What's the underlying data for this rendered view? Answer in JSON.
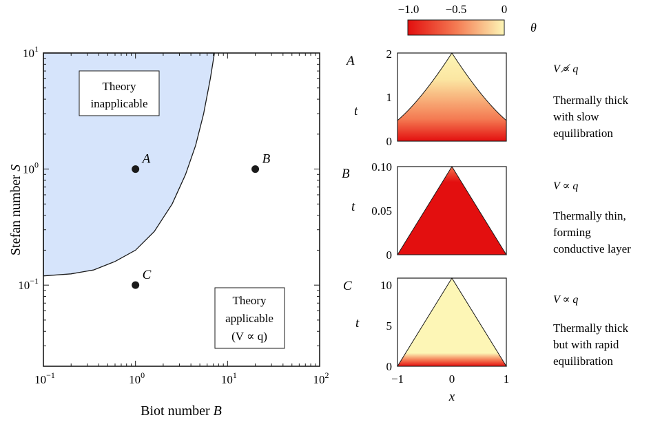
{
  "colors": {
    "region_fill": "#d6e4fb",
    "axis": "#1a1a1a",
    "point": "#1a1a1a",
    "cmap_low": "#e30f0f",
    "cmap_mid": "#f47a52",
    "cmap_high": "#fdf6b6"
  },
  "colorbar": {
    "ticks": [
      "−1.0",
      "−0.5",
      "0"
    ],
    "tick_values": [
      -1.0,
      -0.5,
      0
    ],
    "label": "θ"
  },
  "main": {
    "ylabel_prefix": "Stefan number ",
    "ylabel_sym": "S",
    "xlabel_prefix": "Biot number ",
    "xlabel_sym": "B",
    "x_ticks": [
      {
        "base": "10",
        "exp": "−1",
        "value": 0.1
      },
      {
        "base": "10",
        "exp": "0",
        "value": 1
      },
      {
        "base": "10",
        "exp": "1",
        "value": 10
      },
      {
        "base": "10",
        "exp": "2",
        "value": 100
      }
    ],
    "y_ticks": [
      {
        "base": "10",
        "exp": "−1",
        "value": 0.1
      },
      {
        "base": "10",
        "exp": "0",
        "value": 1
      },
      {
        "base": "10",
        "exp": "1",
        "value": 10
      }
    ],
    "box_inapplicable": [
      "Theory",
      "inapplicable"
    ],
    "box_applicable": [
      "Theory",
      "applicable",
      "(V ∝ q)"
    ],
    "points": [
      {
        "label": "A",
        "B": 1,
        "S": 1
      },
      {
        "label": "B",
        "B": 20,
        "S": 1
      },
      {
        "label": "C",
        "B": 1,
        "S": 0.1
      }
    ]
  },
  "panels": [
    {
      "label": "A",
      "y_ticks": [
        "2",
        "1",
        "0"
      ],
      "ylabel": "t",
      "x_ticks": [],
      "relation": "V ∝̸ q",
      "description": [
        "Thermally thick",
        "with slow",
        "equilibration"
      ]
    },
    {
      "label": "B",
      "y_ticks": [
        "0.10",
        "0.05",
        "0"
      ],
      "ylabel": "t",
      "x_ticks": [],
      "relation": "V ∝ q",
      "description": [
        "Thermally thin,",
        "forming",
        "conductive layer"
      ]
    },
    {
      "label": "C",
      "y_ticks": [
        "10",
        "5",
        "0"
      ],
      "ylabel": "t",
      "x_ticks": [
        "−1",
        "0",
        "1"
      ],
      "xlabel": "x",
      "relation": "V ∝ q",
      "description": [
        "Thermally thick",
        "but with rapid",
        "equilibration"
      ]
    }
  ],
  "chart_data": [
    {
      "type": "scatter",
      "title": "",
      "xlabel": "Biot number B",
      "ylabel": "Stefan number S",
      "x_scale": "log",
      "y_scale": "log",
      "xlim": [
        0.1,
        100
      ],
      "ylim": [
        0.02,
        10
      ],
      "series": [
        {
          "x": [
            1,
            20,
            1
          ],
          "y": [
            1,
            1,
            0.1
          ],
          "labels": [
            "A",
            "B",
            "C"
          ]
        }
      ],
      "region_boundary": {
        "B": [
          0.1,
          0.2,
          0.35,
          0.6,
          1.0,
          1.6,
          2.5,
          3.5,
          4.5,
          5.5,
          6.5,
          7.2
        ],
        "S": [
          0.12,
          0.125,
          0.135,
          0.16,
          0.2,
          0.29,
          0.5,
          0.9,
          1.6,
          3.0,
          6.0,
          10
        ]
      },
      "regions": [
        "Theory inapplicable",
        "Theory applicable (V ∝ q)"
      ]
    },
    {
      "type": "heatmap",
      "panel": "A",
      "xlabel": "x",
      "ylabel": "t",
      "xlim": [
        -1,
        1
      ],
      "ylim": [
        0,
        2
      ],
      "colorbar": {
        "label": "θ",
        "range": [
          -1.0,
          0
        ]
      }
    },
    {
      "type": "heatmap",
      "panel": "B",
      "xlabel": "x",
      "ylabel": "t",
      "xlim": [
        -1,
        1
      ],
      "ylim": [
        0,
        0.1
      ],
      "colorbar": {
        "label": "θ",
        "range": [
          -1.0,
          0
        ]
      }
    },
    {
      "type": "heatmap",
      "panel": "C",
      "xlabel": "x",
      "ylabel": "t",
      "xlim": [
        -1,
        1
      ],
      "ylim": [
        0,
        11
      ],
      "colorbar": {
        "label": "θ",
        "range": [
          -1.0,
          0
        ]
      }
    }
  ]
}
